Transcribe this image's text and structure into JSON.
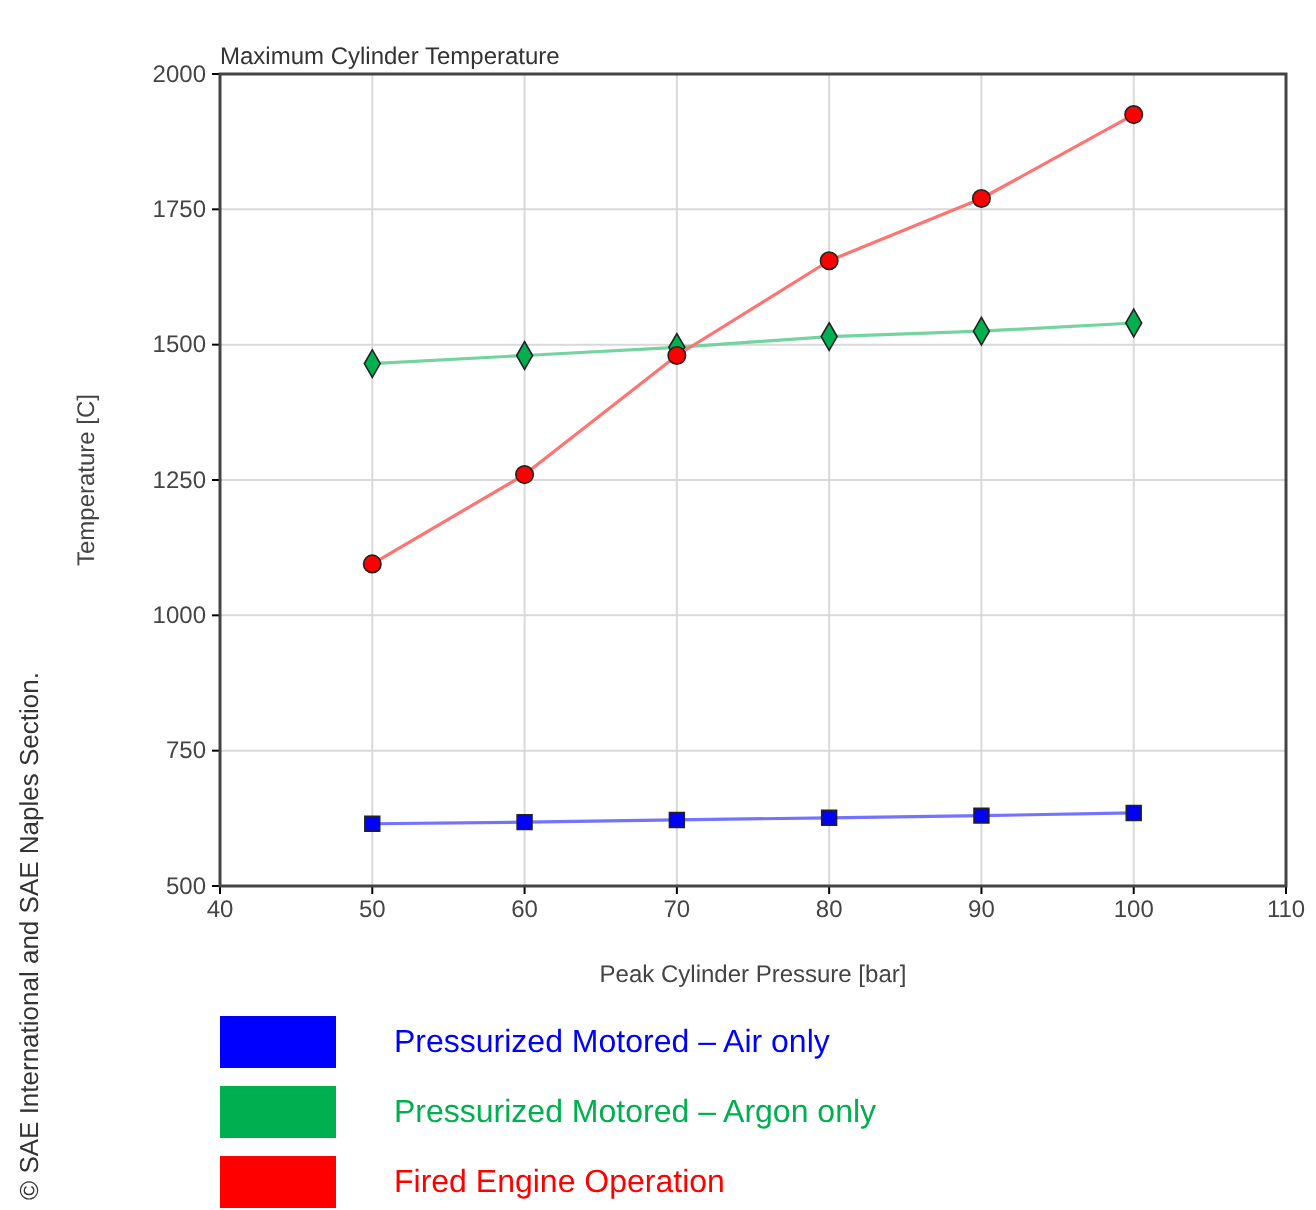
{
  "chart_data": {
    "type": "line",
    "title": "Maximum Cylinder Temperature",
    "xlabel": "Peak Cylinder Pressure [bar]",
    "ylabel": "Temperature [C]",
    "x": [
      50,
      60,
      70,
      80,
      90,
      100
    ],
    "series": [
      {
        "name": "Pressurized Motored – Air only",
        "color": "#0000ff",
        "marker": "square",
        "values": [
          615,
          618,
          622,
          626,
          630,
          635
        ]
      },
      {
        "name": "Pressurized Motored – Argon only",
        "color": "#00b050",
        "marker": "diamond",
        "values": [
          1465,
          1480,
          1495,
          1515,
          1525,
          1540
        ]
      },
      {
        "name": "Fired Engine Operation",
        "color": "#ff0000",
        "marker": "circle",
        "values": [
          1095,
          1260,
          1480,
          1655,
          1770,
          1925
        ]
      }
    ],
    "xlim": [
      40,
      110
    ],
    "xticks": [
      40,
      50,
      60,
      70,
      80,
      90,
      100,
      110
    ],
    "ylim": [
      500,
      2000
    ],
    "yticks": [
      500,
      750,
      1000,
      1250,
      1500,
      1750,
      2000
    ],
    "grid": true,
    "legend": "bottom",
    "line_style": "solid",
    "annotations": [
      "© SAE International and SAE Naples Section."
    ]
  }
}
